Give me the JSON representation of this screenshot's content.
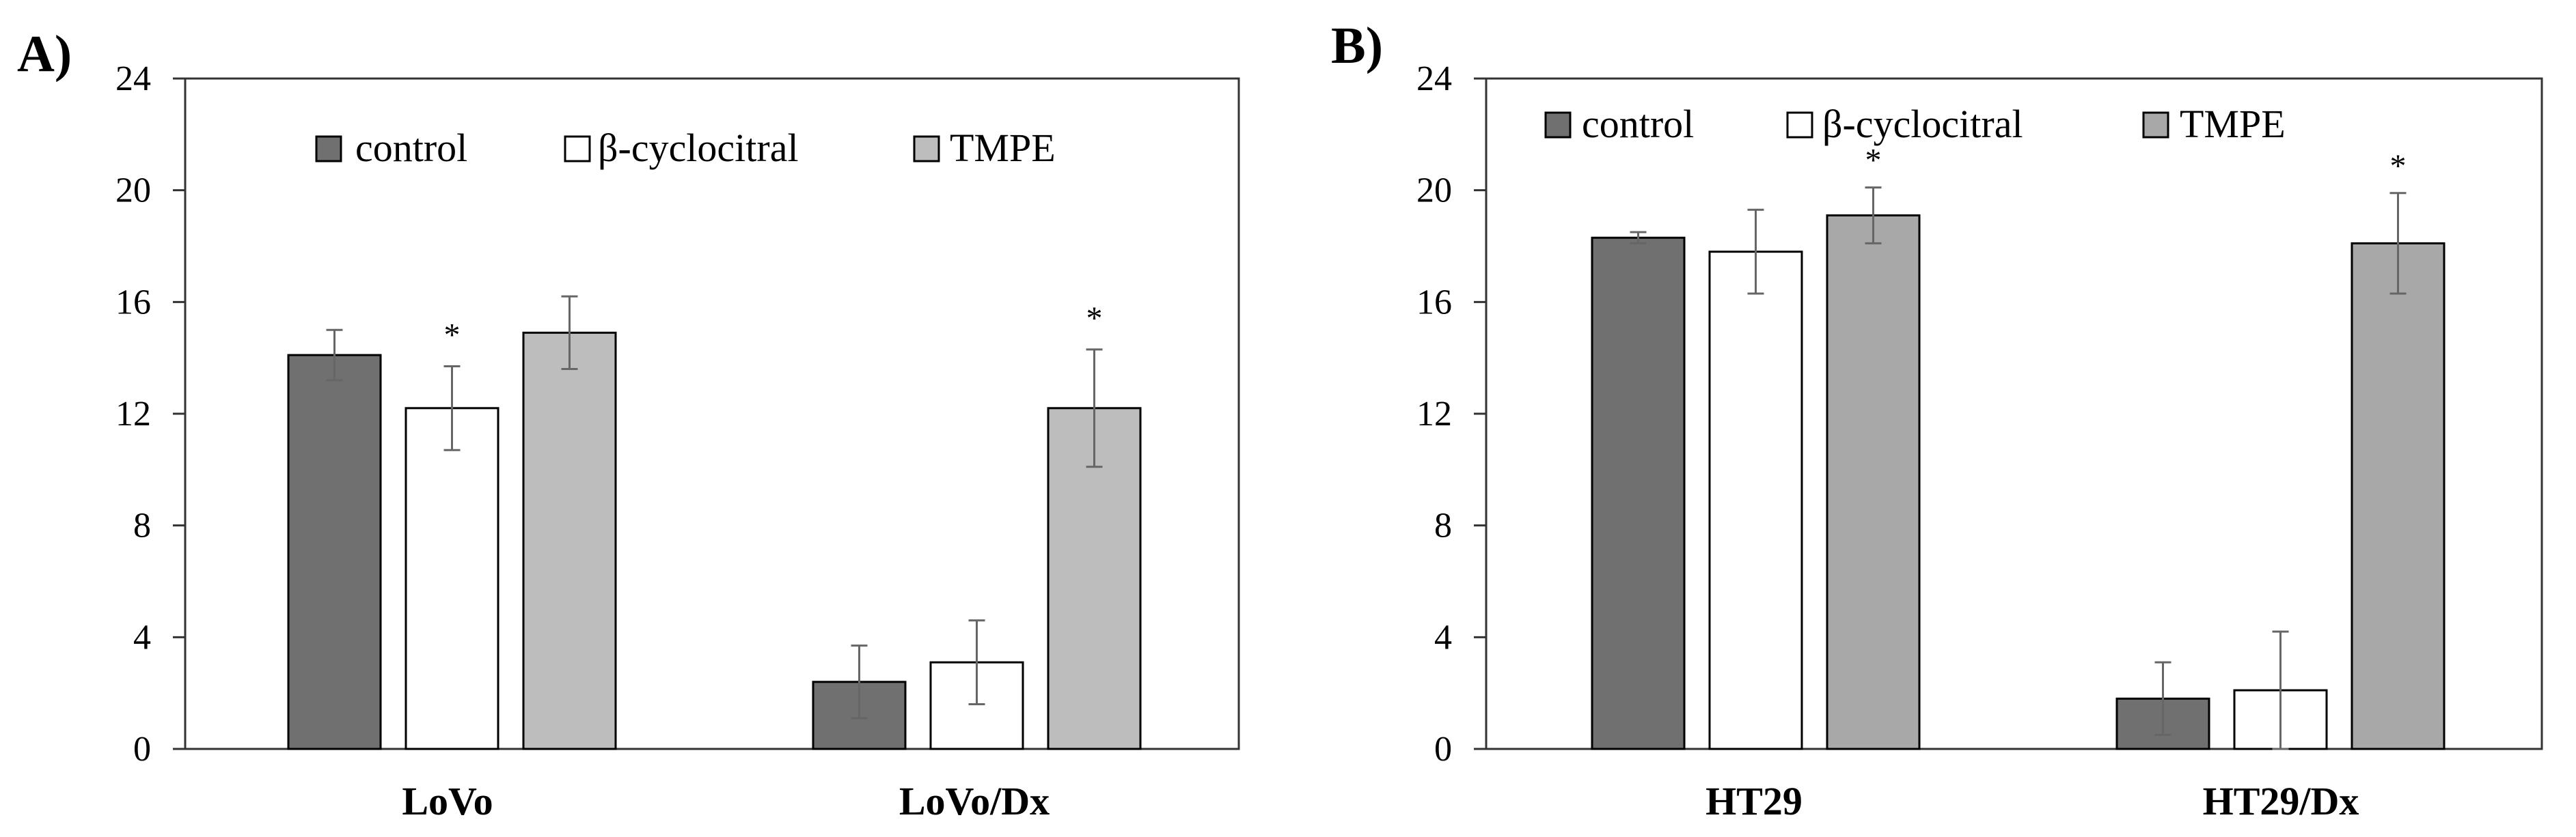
{
  "chart_data": [
    {
      "panel_label": "A)",
      "type": "bar",
      "categories": [
        "LoVo",
        "LoVo/Dx"
      ],
      "series": [
        {
          "name": "control",
          "color": "#707070",
          "values": [
            14.1,
            2.4
          ],
          "errors": [
            0.9,
            1.3
          ],
          "significant": [
            false,
            false
          ]
        },
        {
          "name": "β-cyclocitral",
          "color": "#ffffff",
          "values": [
            12.2,
            3.1
          ],
          "errors": [
            1.5,
            1.5
          ],
          "significant": [
            true,
            false
          ]
        },
        {
          "name": "TMPE",
          "color": "#bdbdbd",
          "values": [
            14.9,
            12.2
          ],
          "errors": [
            1.3,
            2.1
          ],
          "significant": [
            false,
            true
          ]
        }
      ],
      "yticks": [
        "0",
        "4",
        "8",
        "12",
        "16",
        "20",
        "24"
      ],
      "ylim": [
        0,
        24
      ],
      "xlabel": "",
      "ylabel": "",
      "significance_marker": "*",
      "legend_position": "top"
    },
    {
      "panel_label": "B)",
      "type": "bar",
      "categories": [
        "HT29",
        "HT29/Dx"
      ],
      "series": [
        {
          "name": "control",
          "color": "#707070",
          "values": [
            18.3,
            1.8
          ],
          "errors": [
            0.2,
            1.3
          ],
          "significant": [
            false,
            false
          ]
        },
        {
          "name": "β-cyclocitral",
          "color": "#ffffff",
          "values": [
            17.8,
            2.1
          ],
          "errors": [
            1.5,
            2.1
          ],
          "significant": [
            false,
            false
          ]
        },
        {
          "name": "TMPE",
          "color": "#a8a8a8",
          "values": [
            19.1,
            18.1
          ],
          "errors": [
            1.0,
            1.8
          ],
          "significant": [
            true,
            true
          ]
        }
      ],
      "yticks": [
        "0",
        "4",
        "8",
        "12",
        "16",
        "20",
        "24"
      ],
      "ylim": [
        0,
        24
      ],
      "xlabel": "",
      "ylabel": "",
      "significance_marker": "*",
      "legend_position": "top-left"
    }
  ]
}
